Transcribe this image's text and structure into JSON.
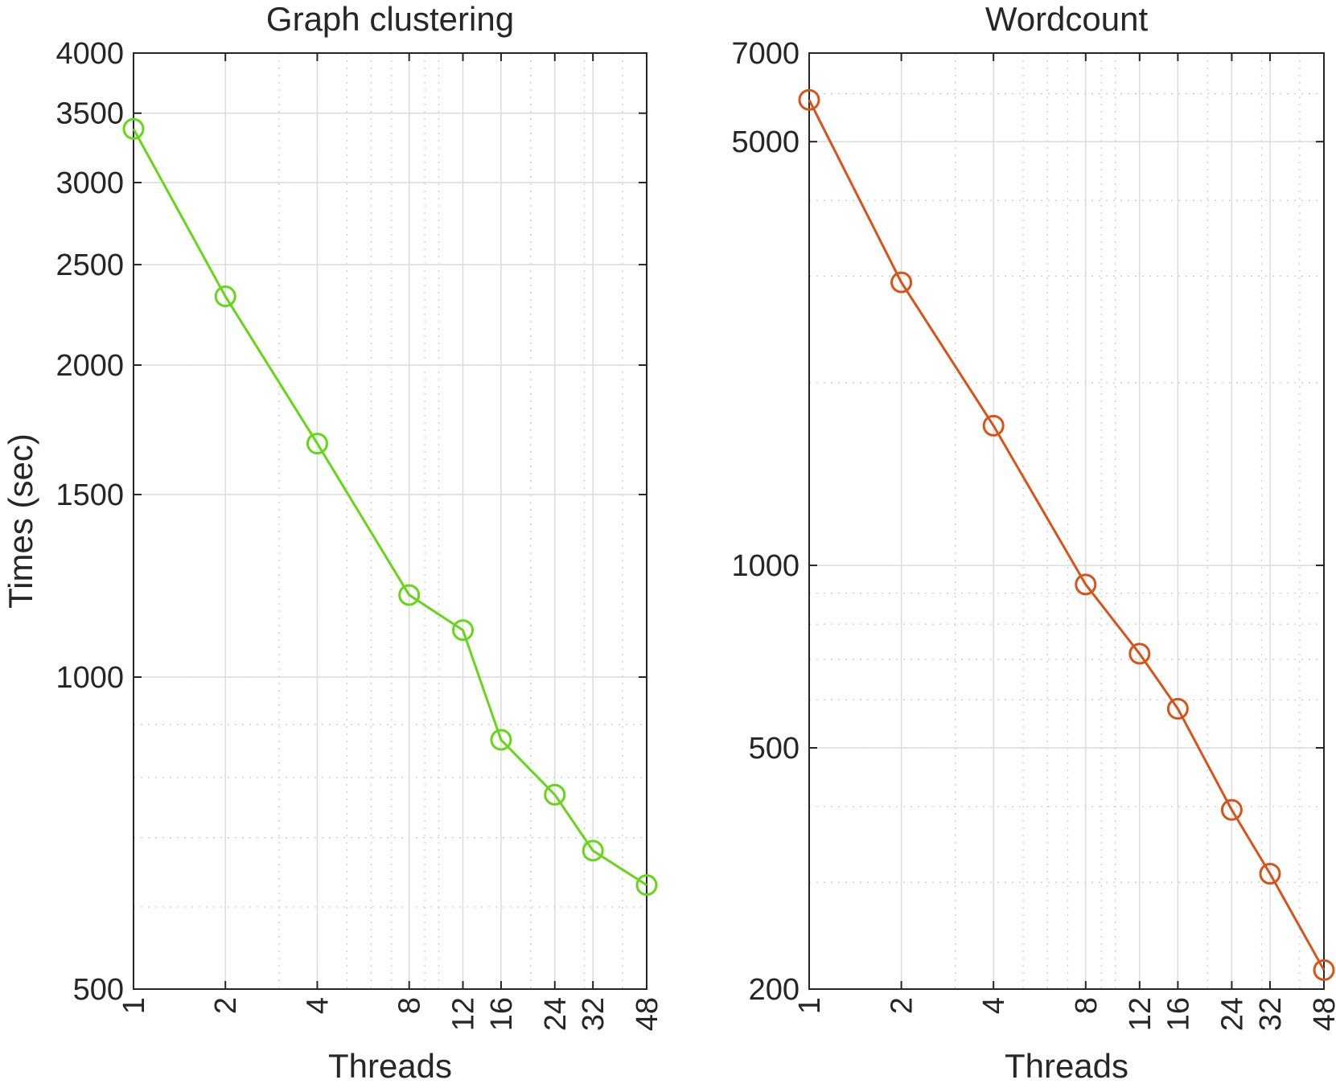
{
  "chart_data": [
    {
      "type": "line",
      "title": "Graph clustering",
      "xlabel": "Threads",
      "ylabel": "Times (sec)",
      "xscale": "log",
      "yscale": "log",
      "xlim": [
        1,
        48
      ],
      "ylim": [
        500,
        4000
      ],
      "grid": true,
      "x_ticks": [
        1,
        2,
        4,
        8,
        12,
        16,
        24,
        32,
        48
      ],
      "y_ticks": [
        500,
        1000,
        1500,
        2000,
        2500,
        3000,
        3500,
        4000
      ],
      "x_tick_labels": [
        "1",
        "2",
        "4",
        "8",
        "12",
        "16",
        "24",
        "32",
        "48"
      ],
      "y_tick_labels": [
        "500",
        "1000",
        "1500",
        "2000",
        "2500",
        "3000",
        "3500",
        "4000"
      ],
      "color": "#66d617",
      "marker": "circle",
      "series": [
        {
          "x": [
            1,
            2,
            4,
            8,
            12,
            16,
            24,
            32,
            48
          ],
          "values": [
            3380,
            2330,
            1680,
            1200,
            1110,
            870,
            770,
            680,
            630
          ]
        }
      ]
    },
    {
      "type": "line",
      "title": "Wordcount",
      "xlabel": "Threads",
      "ylabel": "",
      "xscale": "log",
      "yscale": "log",
      "xlim": [
        1,
        48
      ],
      "ylim": [
        200,
        7000
      ],
      "grid": true,
      "x_ticks": [
        1,
        2,
        4,
        8,
        12,
        16,
        24,
        32,
        48
      ],
      "y_ticks": [
        200,
        500,
        1000,
        5000,
        7000
      ],
      "x_tick_labels": [
        "1",
        "2",
        "4",
        "8",
        "12",
        "16",
        "24",
        "32",
        "48"
      ],
      "y_tick_labels": [
        "200",
        "500",
        "1000",
        "5000",
        "7000"
      ],
      "color": "#d95319",
      "marker": "circle",
      "series": [
        {
          "x": [
            1,
            2,
            4,
            8,
            12,
            16,
            24,
            32,
            48
          ],
          "values": [
            5860,
            2930,
            1700,
            930,
            715,
            580,
            395,
            310,
            215
          ]
        }
      ]
    }
  ]
}
